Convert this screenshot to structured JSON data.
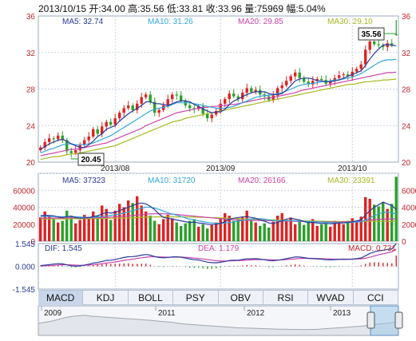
{
  "header": {
    "date": "2013/10/15",
    "open_label": "开:",
    "open": "34.00",
    "high_label": "高:",
    "high": "35.56",
    "low_label": "低:",
    "low": "33.81",
    "close_label": "收:",
    "close": "33.96",
    "volume_label": "量:",
    "volume": "75969",
    "change_label": "幅:",
    "change": "5.04%"
  },
  "colors": {
    "up": "#dd2222",
    "down": "#2aa02a",
    "ma5": "#2a3a9a",
    "ma10": "#33a7d8",
    "ma20": "#cc44aa",
    "ma30": "#a8b820",
    "dif": "#2a3a9a",
    "dea": "#cc44aa",
    "grid": "#c9d3e1"
  },
  "tabs": [
    "MACD",
    "KDJ",
    "BOLL",
    "PSY",
    "OBV",
    "RSI",
    "WVAD",
    "CCI"
  ],
  "active_tab": "MACD",
  "chart_data": [
    {
      "type": "candlestick",
      "name": "price",
      "ylim": [
        20,
        36
      ],
      "yticks": [
        20,
        24,
        28,
        32,
        36
      ],
      "x_ticks": [
        "2013/08",
        "2013/09",
        "2013/10"
      ],
      "legend": {
        "ma5": "MA5: 32.74",
        "ma10": "MA10: 31.26",
        "ma20": "MA20: 29.85",
        "ma30": "MA30: 29.10"
      },
      "annotations": {
        "high_label": "35.56",
        "low_label": "20.45"
      },
      "close": [
        21.6,
        22.2,
        22.6,
        22.5,
        22.9,
        22.4,
        21.2,
        21.0,
        21.3,
        21.9,
        22.4,
        22.8,
        23.6,
        23.1,
        23.9,
        24.4,
        24.1,
        24.8,
        25.4,
        25.9,
        26.2,
        25.7,
        26.4,
        27.1,
        27.4,
        26.6,
        25.4,
        25.7,
        26.2,
        26.9,
        27.4,
        27.3,
        26.7,
        26.2,
        25.9,
        25.8,
        26.1,
        25.3,
        24.8,
        25.2,
        25.6,
        26.4,
        26.9,
        27.5,
        27.2,
        26.9,
        27.6,
        28.1,
        27.7,
        27.9,
        27.4,
        27.2,
        26.8,
        27.3,
        28.1,
        28.4,
        28.9,
        29.4,
        29.8,
        29.2,
        28.8,
        28.5,
        28.9,
        29.1,
        29.0,
        28.6,
        28.9,
        29.2,
        29.5,
        29.6,
        29.4,
        29.9,
        30.2,
        30.7,
        32.3,
        33.2,
        32.9,
        32.8,
        32.6,
        33.0,
        32.8,
        33.96
      ],
      "ma5": [
        21.4,
        21.7,
        22.0,
        22.2,
        22.4,
        22.5,
        22.3,
        22.0,
        21.8,
        21.6,
        21.6,
        21.9,
        22.3,
        22.8,
        23.1,
        23.6,
        23.8,
        24.0,
        24.5,
        24.9,
        25.3,
        25.6,
        25.9,
        26.2,
        26.6,
        26.6,
        26.4,
        26.4,
        26.3,
        26.2,
        26.4,
        26.6,
        26.7,
        26.7,
        26.6,
        26.3,
        26.1,
        25.8,
        25.6,
        25.4,
        25.5,
        25.5,
        25.8,
        26.3,
        26.7,
        26.9,
        27.2,
        27.4,
        27.6,
        27.7,
        27.7,
        27.7,
        27.5,
        27.4,
        27.4,
        27.5,
        27.9,
        28.4,
        28.9,
        29.1,
        29.2,
        29.2,
        29.1,
        28.9,
        28.9,
        28.8,
        28.8,
        28.9,
        29.0,
        29.2,
        29.4,
        29.6,
        29.8,
        30.0,
        30.6,
        31.3,
        31.9,
        32.4,
        32.8,
        32.9,
        32.8,
        32.74
      ],
      "ma10": [
        21.0,
        21.2,
        21.4,
        21.5,
        21.7,
        21.9,
        22.0,
        22.0,
        21.9,
        21.9,
        21.9,
        22.0,
        22.1,
        22.3,
        22.5,
        22.7,
        22.9,
        23.2,
        23.5,
        23.8,
        24.1,
        24.4,
        24.7,
        25.0,
        25.3,
        25.6,
        25.8,
        25.9,
        26.0,
        26.1,
        26.3,
        26.5,
        26.5,
        26.5,
        26.5,
        26.4,
        26.3,
        26.2,
        26.1,
        26.0,
        25.9,
        25.9,
        25.9,
        26.0,
        26.1,
        26.3,
        26.5,
        26.7,
        26.9,
        27.1,
        27.2,
        27.3,
        27.3,
        27.4,
        27.5,
        27.6,
        27.8,
        28.0,
        28.2,
        28.4,
        28.5,
        28.6,
        28.6,
        28.7,
        28.8,
        28.8,
        28.9,
        29.0,
        29.0,
        29.1,
        29.2,
        29.3,
        29.5,
        29.7,
        30.0,
        30.3,
        30.6,
        30.9,
        31.1,
        31.2,
        31.2,
        31.26
      ],
      "ma20": [
        20.7,
        20.8,
        20.9,
        21.0,
        21.1,
        21.2,
        21.3,
        21.4,
        21.4,
        21.5,
        21.6,
        21.7,
        21.8,
        21.9,
        22.0,
        22.1,
        22.3,
        22.5,
        22.7,
        22.9,
        23.1,
        23.3,
        23.5,
        23.7,
        24.0,
        24.2,
        24.4,
        24.6,
        24.8,
        25.0,
        25.2,
        25.4,
        25.5,
        25.6,
        25.7,
        25.8,
        25.9,
        26.0,
        26.0,
        26.1,
        26.1,
        26.2,
        26.2,
        26.3,
        26.3,
        26.4,
        26.5,
        26.6,
        26.7,
        26.8,
        26.9,
        27.0,
        27.0,
        27.1,
        27.2,
        27.3,
        27.4,
        27.5,
        27.6,
        27.8,
        27.9,
        28.0,
        28.1,
        28.2,
        28.3,
        28.4,
        28.5,
        28.6,
        28.7,
        28.8,
        28.9,
        29.0,
        29.1,
        29.2,
        29.3,
        29.4,
        29.5,
        29.6,
        29.7,
        29.8,
        29.8,
        29.85
      ],
      "ma30": [
        20.3,
        20.4,
        20.5,
        20.6,
        20.6,
        20.7,
        20.8,
        20.9,
        20.9,
        21.0,
        21.1,
        21.2,
        21.3,
        21.4,
        21.5,
        21.6,
        21.7,
        21.8,
        22.0,
        22.2,
        22.4,
        22.6,
        22.8,
        23.0,
        23.2,
        23.4,
        23.6,
        23.8,
        24.0,
        24.2,
        24.4,
        24.5,
        24.6,
        24.8,
        24.9,
        25.0,
        25.1,
        25.2,
        25.3,
        25.4,
        25.5,
        25.6,
        25.7,
        25.8,
        25.9,
        26.0,
        26.1,
        26.2,
        26.3,
        26.4,
        26.5,
        26.6,
        26.7,
        26.8,
        26.9,
        27.0,
        27.1,
        27.2,
        27.3,
        27.4,
        27.5,
        27.6,
        27.7,
        27.8,
        27.9,
        28.0,
        28.1,
        28.2,
        28.3,
        28.4,
        28.5,
        28.5,
        28.6,
        28.7,
        28.8,
        28.8,
        28.9,
        28.9,
        29.0,
        29.0,
        29.05,
        29.1
      ]
    },
    {
      "type": "bar",
      "name": "volume",
      "ylim": [
        0,
        80000
      ],
      "yticks": [
        0,
        20000,
        40000,
        60000,
        80000
      ],
      "legend": {
        "ma5": "MA5: 37323",
        "ma10": "MA10: 31720",
        "ma20": "MA20: 26166",
        "ma30": "MA30: 23391"
      },
      "values": [
        28000,
        35000,
        30000,
        26000,
        22000,
        24000,
        36000,
        30000,
        21000,
        25000,
        31000,
        27000,
        35000,
        30000,
        42000,
        38000,
        25000,
        36000,
        44000,
        40000,
        48000,
        45000,
        53000,
        42000,
        35000,
        30000,
        24000,
        20000,
        26000,
        31000,
        27000,
        22000,
        18000,
        21000,
        24000,
        26000,
        17000,
        20000,
        15000,
        19000,
        22000,
        27000,
        33000,
        30000,
        24000,
        26000,
        29000,
        36000,
        25000,
        22000,
        18000,
        21000,
        16000,
        23000,
        30000,
        33000,
        25000,
        28000,
        20000,
        23000,
        19000,
        22000,
        26000,
        18000,
        20000,
        21000,
        17000,
        24000,
        22000,
        20000,
        24000,
        27000,
        23000,
        29000,
        52000,
        50000,
        43000,
        41000,
        46000,
        38000,
        44000,
        75969
      ],
      "ma5": [
        30000,
        30500,
        30200,
        29800,
        28500,
        28000,
        29000,
        29500,
        28000,
        27000,
        27500,
        28000,
        29000,
        30000,
        32000,
        34000,
        33000,
        34000,
        36000,
        38000,
        40000,
        42000,
        44000,
        45000,
        44000,
        41000,
        37000,
        32000,
        28000,
        27000,
        26000,
        25000,
        24000,
        23000,
        22000,
        22500,
        21500,
        21000,
        20000,
        19500,
        20000,
        21000,
        23000,
        26000,
        27000,
        28000,
        28500,
        29000,
        28000,
        27000,
        25000,
        23500,
        21500,
        21000,
        22000,
        24000,
        26000,
        27000,
        26000,
        25000,
        23000,
        22000,
        22000,
        21500,
        21000,
        21000,
        20500,
        21000,
        21500,
        21500,
        22000,
        23000,
        24000,
        25000,
        31000,
        36000,
        40000,
        43000,
        46000,
        44000,
        42000,
        37323
      ],
      "ma10": [
        29000,
        29200,
        29300,
        29200,
        29000,
        28800,
        28800,
        28900,
        28800,
        28500,
        28200,
        28100,
        28300,
        28600,
        29000,
        29800,
        30500,
        31200,
        32000,
        33000,
        34500,
        36000,
        37500,
        39000,
        40000,
        40000,
        39000,
        37500,
        35500,
        33500,
        32000,
        30500,
        29000,
        27500,
        26000,
        25000,
        24000,
        23000,
        22000,
        21500,
        21000,
        21000,
        21500,
        22000,
        22800,
        23500,
        24500,
        25500,
        26000,
        26500,
        26500,
        26000,
        25000,
        24500,
        24000,
        24000,
        24200,
        24300,
        24000,
        23800,
        23500,
        23200,
        23000,
        22800,
        22500,
        22200,
        22000,
        21800,
        21800,
        21800,
        22000,
        22200,
        22600,
        23000,
        25000,
        27500,
        30000,
        32000,
        34000,
        34200,
        33500,
        31720
      ],
      "ma20": [
        27000,
        27100,
        27200,
        27300,
        27300,
        27300,
        27400,
        27500,
        27500,
        27500,
        27500,
        27500,
        27600,
        27700,
        27900,
        28100,
        28400,
        28700,
        29000,
        29400,
        29800,
        30300,
        30800,
        31300,
        31800,
        32100,
        32300,
        32400,
        32300,
        32100,
        31800,
        31400,
        31000,
        30500,
        30000,
        29500,
        29000,
        28500,
        28000,
        27500,
        27000,
        26500,
        26000,
        25500,
        25200,
        25000,
        24800,
        24600,
        24500,
        24500,
        24500,
        24400,
        24200,
        24000,
        23800,
        23700,
        23600,
        23500,
        23400,
        23300,
        23200,
        23100,
        23000,
        22900,
        22800,
        22700,
        22600,
        22500,
        22500,
        22600,
        22800,
        23000,
        23300,
        23600,
        24200,
        24800,
        25300,
        25700,
        26000,
        26100,
        26150,
        26166
      ],
      "ma30": [
        26000,
        26050,
        26100,
        26150,
        26200,
        26250,
        26300,
        26350,
        26400,
        26450,
        26500,
        26550,
        26600,
        26700,
        26800,
        26900,
        27000,
        27100,
        27200,
        27300,
        27500,
        27700,
        27900,
        28100,
        28300,
        28500,
        28600,
        28700,
        28750,
        28750,
        28700,
        28650,
        28600,
        28500,
        28400,
        28300,
        28200,
        28100,
        28000,
        27800,
        27600,
        27400,
        27200,
        27000,
        26800,
        26600,
        26400,
        26200,
        26000,
        25800,
        25600,
        25400,
        25200,
        25000,
        24800,
        24600,
        24450,
        24300,
        24150,
        24000,
        23900,
        23800,
        23700,
        23600,
        23500,
        23400,
        23300,
        23250,
        23200,
        23200,
        23200,
        23220,
        23240,
        23260,
        23280,
        23300,
        23320,
        23340,
        23360,
        23370,
        23380,
        23391
      ]
    },
    {
      "type": "macd",
      "name": "macd",
      "ylim": [
        -1.545,
        1.545
      ],
      "ytick_labels": [
        "1.545",
        "0.000",
        "-1.545"
      ],
      "legend": {
        "dif": "DIF: 1.545",
        "dea": "DEA: 1.179",
        "macd": "MACD: 0.731"
      },
      "dif": [
        0.05,
        0.08,
        0.12,
        0.15,
        0.18,
        0.17,
        0.1,
        0.04,
        0.01,
        0.03,
        0.08,
        0.14,
        0.22,
        0.26,
        0.33,
        0.4,
        0.42,
        0.47,
        0.53,
        0.6,
        0.65,
        0.66,
        0.7,
        0.76,
        0.8,
        0.76,
        0.66,
        0.6,
        0.58,
        0.6,
        0.64,
        0.65,
        0.62,
        0.56,
        0.5,
        0.45,
        0.43,
        0.36,
        0.28,
        0.25,
        0.24,
        0.28,
        0.33,
        0.4,
        0.42,
        0.42,
        0.46,
        0.51,
        0.51,
        0.52,
        0.49,
        0.45,
        0.39,
        0.38,
        0.42,
        0.46,
        0.52,
        0.58,
        0.64,
        0.63,
        0.59,
        0.54,
        0.52,
        0.51,
        0.49,
        0.45,
        0.44,
        0.45,
        0.47,
        0.48,
        0.47,
        0.49,
        0.52,
        0.57,
        0.72,
        0.88,
        0.98,
        1.05,
        1.09,
        1.15,
        1.18,
        1.545
      ],
      "dea": [
        0.02,
        0.03,
        0.05,
        0.07,
        0.09,
        0.11,
        0.11,
        0.1,
        0.08,
        0.07,
        0.07,
        0.09,
        0.11,
        0.14,
        0.18,
        0.22,
        0.26,
        0.3,
        0.35,
        0.4,
        0.45,
        0.49,
        0.53,
        0.58,
        0.62,
        0.65,
        0.65,
        0.64,
        0.63,
        0.62,
        0.62,
        0.63,
        0.63,
        0.61,
        0.59,
        0.56,
        0.53,
        0.5,
        0.46,
        0.42,
        0.38,
        0.36,
        0.36,
        0.37,
        0.38,
        0.39,
        0.4,
        0.42,
        0.44,
        0.45,
        0.46,
        0.46,
        0.45,
        0.44,
        0.43,
        0.44,
        0.45,
        0.48,
        0.51,
        0.53,
        0.54,
        0.54,
        0.54,
        0.53,
        0.52,
        0.51,
        0.5,
        0.49,
        0.49,
        0.49,
        0.49,
        0.49,
        0.5,
        0.51,
        0.55,
        0.62,
        0.7,
        0.78,
        0.85,
        0.92,
        0.98,
        1.179
      ],
      "hist": [
        0.03,
        0.05,
        0.07,
        0.08,
        0.09,
        0.06,
        -0.01,
        -0.06,
        -0.07,
        -0.04,
        0.01,
        0.05,
        0.11,
        0.12,
        0.15,
        0.18,
        0.16,
        0.17,
        0.18,
        0.2,
        0.2,
        0.17,
        0.17,
        0.18,
        0.18,
        0.11,
        0.01,
        -0.04,
        -0.05,
        -0.02,
        0.02,
        0.02,
        -0.01,
        -0.05,
        -0.09,
        -0.11,
        -0.1,
        -0.14,
        -0.18,
        -0.17,
        -0.14,
        -0.08,
        -0.03,
        0.03,
        0.04,
        0.03,
        0.06,
        0.09,
        0.07,
        0.07,
        0.03,
        -0.01,
        -0.06,
        -0.06,
        -0.01,
        0.02,
        0.07,
        0.1,
        0.13,
        0.1,
        0.05,
        0.0,
        -0.02,
        -0.02,
        -0.03,
        -0.06,
        -0.06,
        -0.04,
        -0.02,
        -0.01,
        -0.02,
        0.0,
        0.02,
        0.06,
        0.17,
        0.26,
        0.28,
        0.27,
        0.24,
        0.23,
        0.2,
        0.731
      ]
    },
    {
      "type": "area",
      "name": "overview",
      "x_ticks": [
        "2009",
        "2011",
        "2012",
        "2013"
      ],
      "values": [
        0.45,
        0.5,
        0.55,
        0.62,
        0.7,
        0.75,
        0.78,
        0.8,
        0.76,
        0.74,
        0.72,
        0.7,
        0.68,
        0.66,
        0.64,
        0.62,
        0.6,
        0.58,
        0.55,
        0.52,
        0.5,
        0.45,
        0.42,
        0.4,
        0.38,
        0.36,
        0.34,
        0.32,
        0.3,
        0.28,
        0.26,
        0.25,
        0.24,
        0.23,
        0.22,
        0.21,
        0.2,
        0.2,
        0.19,
        0.19,
        0.18,
        0.19,
        0.2,
        0.22,
        0.24,
        0.26,
        0.28,
        0.3,
        0.32,
        0.35,
        0.38,
        0.42,
        0.45,
        0.48,
        0.52
      ]
    }
  ]
}
